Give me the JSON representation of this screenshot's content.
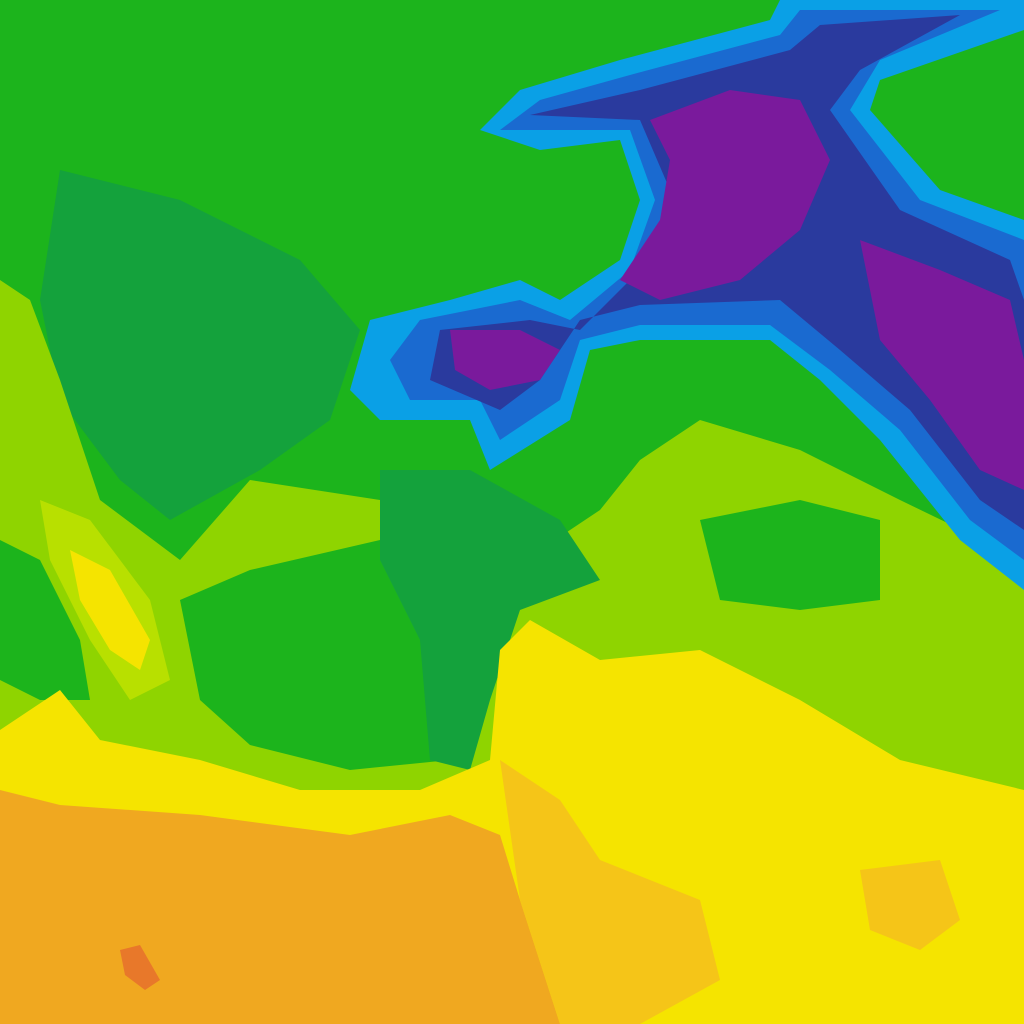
{
  "map": {
    "type": "temperature-field",
    "palette": {
      "green": "#1cb41c",
      "dark_green": "#14a23c",
      "yellow_green": "#8fd400",
      "light_yellow_green": "#b8e000",
      "yellow": "#f5e400",
      "yellow_orange": "#f5c518",
      "orange": "#f0a820",
      "dark_orange": "#e8782a",
      "light_blue": "#0aa0e6",
      "blue": "#1a6ad0",
      "dark_blue": "#2a3a9e",
      "purple": "#7a1a9c"
    }
  }
}
